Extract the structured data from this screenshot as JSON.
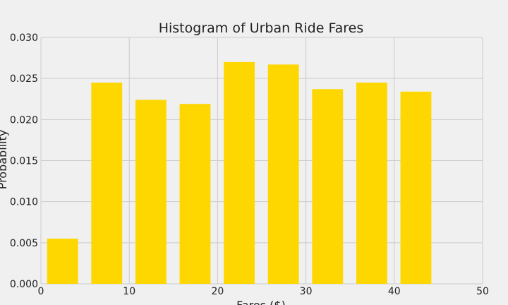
{
  "chart_data": {
    "type": "bar",
    "title": "Histogram of Urban Ride Fares",
    "xlabel": "Fares ($)",
    "ylabel": "Probability",
    "xlim": [
      0,
      50
    ],
    "ylim": [
      0,
      0.03
    ],
    "x_ticks": [
      0,
      10,
      20,
      30,
      40,
      50
    ],
    "x_tick_labels": [
      "0",
      "10",
      "20",
      "30",
      "40",
      "50"
    ],
    "y_ticks": [
      0,
      0.005,
      0.01,
      0.015,
      0.02,
      0.025,
      0.03
    ],
    "y_tick_labels": [
      "0.000",
      "0.005",
      "0.010",
      "0.015",
      "0.020",
      "0.025",
      "0.030"
    ],
    "bins": [
      {
        "start": 0.7,
        "end": 4.2,
        "value": 0.0055
      },
      {
        "start": 5.7,
        "end": 9.2,
        "value": 0.0245
      },
      {
        "start": 10.7,
        "end": 14.2,
        "value": 0.0224
      },
      {
        "start": 15.7,
        "end": 19.2,
        "value": 0.0219
      },
      {
        "start": 20.7,
        "end": 24.2,
        "value": 0.027
      },
      {
        "start": 25.7,
        "end": 29.2,
        "value": 0.0267
      },
      {
        "start": 30.7,
        "end": 34.2,
        "value": 0.0237
      },
      {
        "start": 35.7,
        "end": 39.2,
        "value": 0.0245
      },
      {
        "start": 40.7,
        "end": 44.2,
        "value": 0.0234
      }
    ],
    "grid": true,
    "colors": {
      "bar": "#ffd700",
      "grid": "#cbcbcb",
      "background": "#f0f0f0",
      "text": "#222222"
    }
  }
}
